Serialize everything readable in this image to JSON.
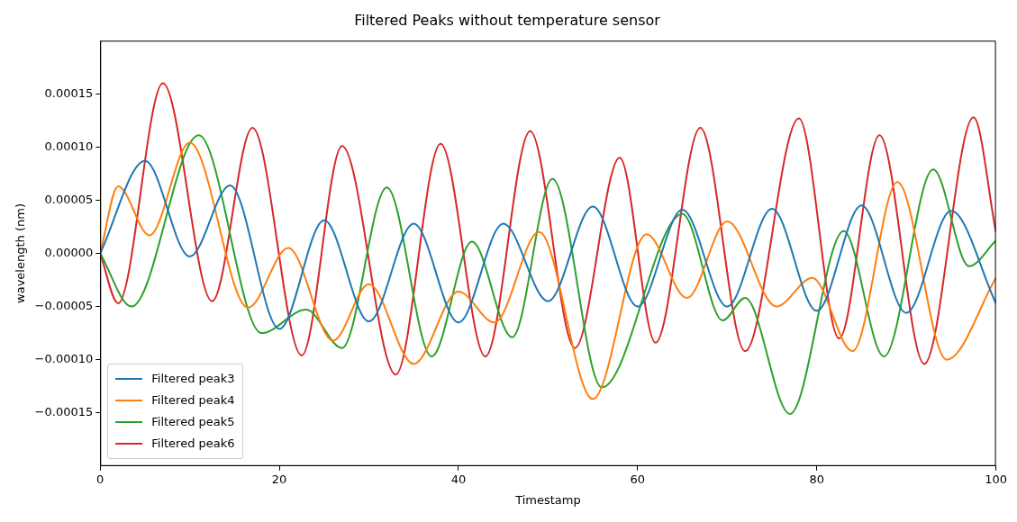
{
  "chart_data": {
    "type": "line",
    "title": "Filtered Peaks without temperature sensor",
    "xlabel": "Timestamp",
    "ylabel": "wavelength (nm)",
    "xlim": [
      0,
      100
    ],
    "xticks": [
      0,
      20,
      40,
      60,
      80,
      100
    ],
    "ylim": [
      -0.0002,
      0.0002
    ],
    "yticks": [
      {
        "value": -0.00015,
        "label": "−0.00015"
      },
      {
        "value": -0.0001,
        "label": "−0.00010"
      },
      {
        "value": -5e-05,
        "label": "−0.00005"
      },
      {
        "value": 0,
        "label": "0.00000"
      },
      {
        "value": 5e-05,
        "label": "0.00005"
      },
      {
        "value": 0.0001,
        "label": "0.00010"
      },
      {
        "value": 0.00015,
        "label": "0.00015"
      }
    ],
    "grid": false,
    "legend": "bottom left",
    "line_style": "solid",
    "marker": "none",
    "series": [
      {
        "name": "Filtered peak3",
        "color": "#1f77b4",
        "x": [
          0,
          5,
          10,
          14.5,
          20,
          25,
          30,
          35,
          40,
          45,
          50,
          55,
          60,
          65,
          70,
          75,
          80,
          85,
          90,
          95,
          100
        ],
        "values": [
          0,
          8.7e-05,
          -3e-06,
          6.4e-05,
          -7.1e-05,
          3.1e-05,
          -6.4e-05,
          2.8e-05,
          -6.5e-05,
          2.8e-05,
          -4.5e-05,
          4.4e-05,
          -5e-05,
          4.1e-05,
          -5e-05,
          4.2e-05,
          -5.4e-05,
          4.5e-05,
          -5.6e-05,
          4e-05,
          -4.7e-05
        ]
      },
      {
        "name": "Filtered peak4",
        "color": "#ff7f0e",
        "x": [
          0,
          2,
          5.5,
          10,
          16.5,
          21,
          26,
          30,
          35,
          40,
          44,
          49,
          55,
          61,
          65.5,
          70,
          75.5,
          79.5,
          84,
          89,
          94.5,
          100
        ],
        "values": [
          0,
          6.3e-05,
          1.7e-05,
          0.000104,
          -5.1e-05,
          5e-06,
          -8.2e-05,
          -2.9e-05,
          -0.000104,
          -3.6e-05,
          -6.5e-05,
          2e-05,
          -0.000137,
          1.8e-05,
          -4.2e-05,
          3e-05,
          -5e-05,
          -2.3e-05,
          -9.2e-05,
          6.7e-05,
          -0.0001,
          -2.3e-05
        ]
      },
      {
        "name": "Filtered peak5",
        "color": "#2ca02c",
        "x": [
          0,
          3.5,
          11,
          18,
          23,
          27,
          32,
          37,
          41.5,
          46,
          50.5,
          56,
          65,
          69.5,
          72,
          77,
          83,
          87.5,
          93,
          97,
          100
        ],
        "values": [
          0,
          -5e-05,
          0.000111,
          -7.5e-05,
          -5.3e-05,
          -8.9e-05,
          6.2e-05,
          -9.7e-05,
          1.1e-05,
          -7.9e-05,
          7e-05,
          -0.000126,
          3.7e-05,
          -6.3e-05,
          -4.2e-05,
          -0.000151,
          2.1e-05,
          -9.7e-05,
          7.9e-05,
          -1.2e-05,
          1.2e-05
        ]
      },
      {
        "name": "Filtered peak6",
        "color": "#d62728",
        "x": [
          0,
          2,
          7,
          12.5,
          17,
          22.5,
          27,
          33,
          38,
          43,
          48,
          53,
          58,
          62,
          67,
          72,
          78,
          82.5,
          87,
          92,
          97.5,
          100
        ],
        "values": [
          0,
          -4.7e-05,
          0.00016,
          -4.5e-05,
          0.000118,
          -9.6e-05,
          0.000101,
          -0.000114,
          0.000103,
          -9.7e-05,
          0.000115,
          -8.9e-05,
          9e-05,
          -8.4e-05,
          0.000118,
          -9.2e-05,
          0.000127,
          -8e-05,
          0.000111,
          -0.000104,
          0.000128,
          2e-05
        ]
      }
    ]
  }
}
